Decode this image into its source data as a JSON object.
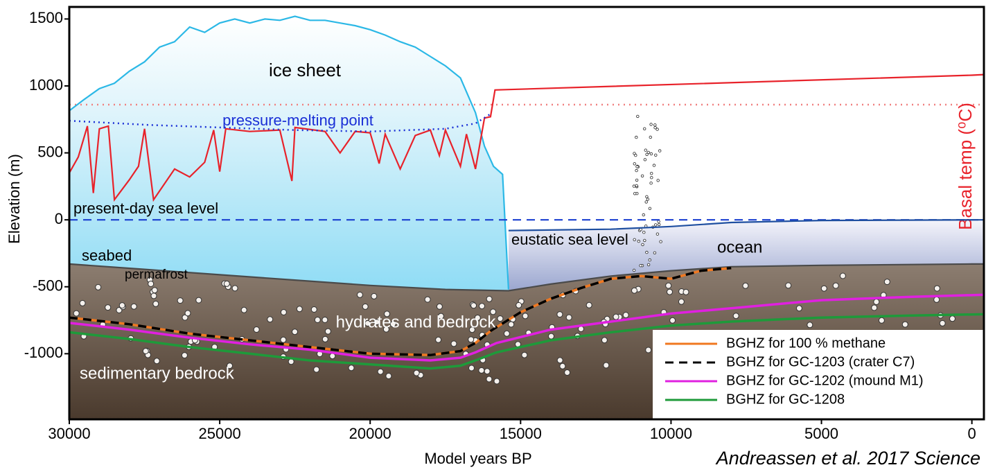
{
  "chart_data": {
    "type": "line",
    "x_label": "Model years BP",
    "y_label": "Elevation (m)",
    "xlim": [
      30000,
      -400
    ],
    "ylim": [
      -1490,
      1590
    ],
    "xticks": [
      30000,
      25000,
      20000,
      15000,
      10000,
      5000,
      0
    ],
    "yticks": [
      -1000,
      -500,
      0,
      500,
      1000,
      1500
    ],
    "lines": [
      {
        "name": "ice sheet",
        "color": "#2bb8e6",
        "dash": "solid",
        "x": [
          30000,
          29500,
          29000,
          28500,
          28000,
          27500,
          27000,
          26500,
          26000,
          25500,
          25000,
          24500,
          24000,
          23500,
          23000,
          22500,
          22000,
          21500,
          21000,
          20500,
          20000,
          19500,
          19000,
          18500,
          18000,
          17500,
          17000,
          16500,
          16200,
          15900,
          15600,
          15400
        ],
        "values": [
          815,
          900,
          980,
          1020,
          1110,
          1180,
          1290,
          1330,
          1440,
          1400,
          1470,
          1500,
          1470,
          1500,
          1490,
          1520,
          1490,
          1490,
          1470,
          1450,
          1420,
          1380,
          1330,
          1290,
          1220,
          1150,
          1060,
          800,
          550,
          400,
          340,
          -520
        ]
      },
      {
        "name": "Basal temp (⁰C)",
        "color": "#e8222a",
        "dash": "solid",
        "x": [
          30000,
          29700,
          29400,
          29200,
          29000,
          28700,
          28500,
          28000,
          27700,
          27500,
          27200,
          26500,
          26000,
          25500,
          25200,
          25000,
          24800,
          24000,
          23000,
          22600,
          22500,
          21500,
          21000,
          20500,
          20000,
          19700,
          19500,
          19000,
          18500,
          18000,
          17700,
          17500,
          17000,
          16800,
          16500,
          16200,
          16000,
          15850,
          0,
          -400
        ],
        "values": [
          350,
          470,
          700,
          200,
          680,
          700,
          150,
          300,
          400,
          680,
          150,
          380,
          320,
          430,
          670,
          360,
          680,
          660,
          670,
          290,
          690,
          660,
          500,
          660,
          650,
          420,
          640,
          380,
          630,
          670,
          480,
          670,
          400,
          640,
          380,
          760,
          770,
          970,
          1080,
          1085
        ]
      },
      {
        "name": "pressure-melting point",
        "color": "#1a2fd6",
        "dash": "dotted",
        "x": [
          30000,
          27500,
          25000,
          22500,
          20000,
          17500,
          16500,
          16000
        ],
        "values": [
          740,
          710,
          690,
          670,
          660,
          680,
          720,
          790
        ]
      },
      {
        "name": "present-day sea level",
        "color": "#1a3fd0",
        "dash": "dashed",
        "x": [
          30000,
          -400
        ],
        "values": [
          0,
          0
        ]
      },
      {
        "name": "eustatic sea level",
        "color": "#1f4fa0",
        "dash": "solid",
        "x": [
          15400,
          12000,
          10000,
          8000,
          5000,
          0,
          -400
        ],
        "values": [
          -80,
          -70,
          -50,
          -20,
          -5,
          0,
          0
        ]
      },
      {
        "name": "seabed",
        "color": "#4a4a4a",
        "dash": "solid",
        "x": [
          30000,
          27500,
          25000,
          22500,
          20000,
          17500,
          15400,
          14000,
          12000,
          10000,
          8000,
          5000,
          0,
          -400
        ],
        "values": [
          -330,
          -370,
          -410,
          -450,
          -490,
          -520,
          -530,
          -480,
          -420,
          -380,
          -350,
          -340,
          -330,
          -330
        ]
      }
    ],
    "hlines": [
      {
        "value": 860,
        "color": "#f08080"
      }
    ],
    "series": [
      {
        "name": "BGHZ for 100 % methane",
        "color": "#f07820",
        "dash": "solid",
        "x": [
          30000,
          28000,
          26000,
          24000,
          22000,
          20000,
          18000,
          17000,
          16500,
          16000,
          15000,
          14000,
          13000,
          12000,
          11000,
          10000,
          9000,
          8000
        ],
        "values": [
          -730,
          -780,
          -850,
          -900,
          -950,
          -1000,
          -1010,
          -980,
          -920,
          -830,
          -690,
          -590,
          -510,
          -440,
          -420,
          -440,
          -380,
          -360
        ]
      },
      {
        "name": "BGHZ for GC-1203 (crater C7)",
        "color": "#000000",
        "dash": "dashed",
        "x": [
          30000,
          28000,
          26000,
          24000,
          22000,
          20000,
          18000,
          17000,
          16500,
          16000,
          15000,
          14000,
          13000,
          12000,
          11000,
          10000,
          9000,
          8000
        ],
        "values": [
          -730,
          -780,
          -850,
          -900,
          -950,
          -1000,
          -1010,
          -980,
          -920,
          -830,
          -690,
          -590,
          -510,
          -440,
          -420,
          -440,
          -380,
          -360
        ]
      },
      {
        "name": "BGHZ for GC-1202 (mound M1)",
        "color": "#e020e0",
        "dash": "solid",
        "x": [
          30000,
          28000,
          26000,
          24000,
          22000,
          20000,
          18000,
          17000,
          16500,
          15800,
          14000,
          12000,
          10000,
          8000,
          5000,
          2000,
          -400
        ],
        "values": [
          -770,
          -820,
          -880,
          -930,
          -970,
          -1030,
          -1050,
          -1030,
          -990,
          -920,
          -820,
          -760,
          -700,
          -660,
          -600,
          -575,
          -560
        ]
      },
      {
        "name": "BGHZ for GC-1208",
        "color": "#1e9a3a",
        "dash": "solid",
        "x": [
          30000,
          28000,
          26000,
          24000,
          22000,
          20000,
          18000,
          17000,
          16500,
          15800,
          14000,
          12000,
          10000,
          8000,
          5000,
          2000,
          -400
        ],
        "values": [
          -840,
          -890,
          -950,
          -1000,
          -1050,
          -1080,
          -1110,
          -1090,
          -1050,
          -990,
          -900,
          -840,
          -790,
          -760,
          -730,
          -715,
          -705
        ]
      }
    ],
    "annotations": [
      "permafrost",
      "ocean",
      "hydrates and bedrock",
      "sedimentary bedrock"
    ]
  },
  "credit": "Andreassen et al. 2017 Science"
}
